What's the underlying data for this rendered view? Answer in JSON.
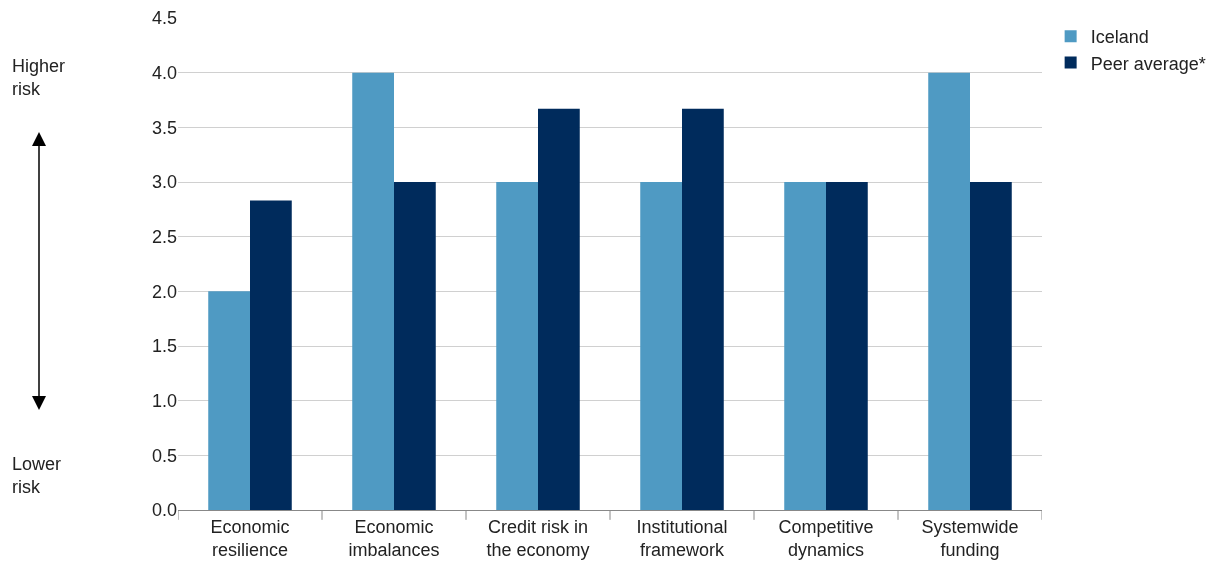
{
  "chart_data": {
    "type": "bar",
    "categories": [
      "Economic\nresilience",
      "Economic\nimbalances",
      "Credit risk in\nthe economy",
      "Institutional\nframework",
      "Competitive\ndynamics",
      "Systemwide\nfunding"
    ],
    "series": [
      {
        "name": "Iceland",
        "color": "#4f9ac3",
        "values": [
          2,
          4,
          3,
          3,
          3,
          4
        ]
      },
      {
        "name": "Peer average*",
        "color": "#002b5c",
        "values": [
          2.83,
          3,
          3.67,
          3.67,
          3,
          3
        ]
      }
    ],
    "ylim": [
      0,
      4.5
    ],
    "yticks": [
      {
        "value": 0,
        "label": "0.0"
      },
      0.5,
      {
        "value": 1,
        "label": "1.0"
      },
      1.5,
      {
        "value": 2,
        "label": "2.0"
      },
      2.5,
      {
        "value": 3,
        "label": "3.0"
      },
      3.5,
      {
        "value": 4,
        "label": "4.0"
      },
      4.5
    ],
    "annotations": [
      "Higher\nrisk",
      "Lower\nrisk"
    ],
    "grid": "y",
    "legend": "top right"
  }
}
